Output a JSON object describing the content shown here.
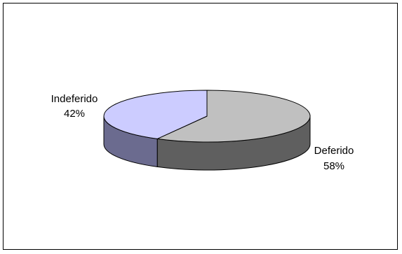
{
  "chart_data": {
    "type": "pie",
    "style": "3d",
    "title": "",
    "categories": [
      "Deferido",
      "Indeferido"
    ],
    "values": [
      58,
      42
    ],
    "labels": [
      "58%",
      "42%"
    ],
    "colors": {
      "Deferido": "#c0c0c0",
      "Indeferido": "#ccccff"
    },
    "side_colors": {
      "Deferido": "#5f5f5f",
      "Indeferido": "#6b6b8f"
    },
    "legend": "none"
  }
}
